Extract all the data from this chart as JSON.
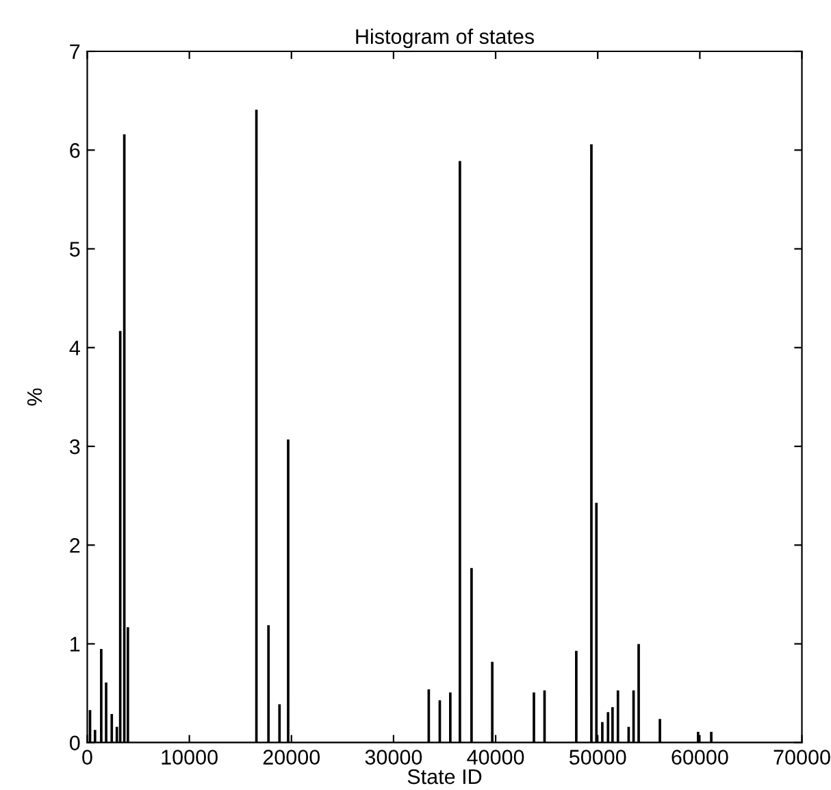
{
  "chart_data": {
    "type": "histogram",
    "title": "Histogram of states",
    "xlabel": "State ID",
    "ylabel": "%",
    "color": "#000000",
    "bins": [
      0,
      230,
      310,
      720,
      800,
      1330,
      1410,
      1810,
      1890,
      2360,
      2440,
      2860,
      2940,
      3190,
      3270,
      3590,
      3670,
      3940,
      4020,
      16530,
      16610,
      17710,
      17790,
      18790,
      18870,
      19640,
      19720,
      33410,
      33490,
      34490,
      34570,
      35520,
      35600,
      36460,
      36540,
      37600,
      37680,
      39630,
      39710,
      43710,
      43790,
      44750,
      44830,
      47860,
      47940,
      49340,
      49420,
      49830,
      49910,
      50410,
      50490,
      50970,
      51050,
      51410,
      51490,
      51940,
      52020,
      52990,
      53070,
      53470,
      53550,
      53970,
      54050,
      56050,
      56130,
      59790,
      59870,
      61080,
      61160,
      70000
    ],
    "values": [
      0,
      0.32,
      0,
      0.12,
      0,
      0.94,
      0,
      0.6,
      0,
      0.28,
      0,
      0.15,
      0,
      4.16,
      0,
      6.15,
      0,
      1.16,
      0,
      6.4,
      0,
      1.18,
      0,
      0.38,
      0,
      3.06,
      0,
      0.53,
      0,
      0.42,
      0,
      0.5,
      0,
      5.88,
      0,
      1.76,
      0,
      0.81,
      0,
      0.5,
      0,
      0.52,
      0,
      0.92,
      0,
      6.05,
      0,
      2.42,
      0,
      0.2,
      0,
      0.3,
      0,
      0.35,
      0,
      0.52,
      0,
      0.15,
      0,
      0.52,
      0,
      0.99,
      0,
      0.23,
      0,
      0.1,
      0,
      0.1,
      0
    ],
    "xlim": [
      0,
      70000
    ],
    "xticks": [
      0,
      10000,
      20000,
      30000,
      40000,
      50000,
      60000,
      70000
    ],
    "ylim": [
      0,
      7
    ],
    "yticks": [
      0,
      1,
      2,
      3,
      4,
      5,
      6,
      7
    ],
    "grid": false
  }
}
